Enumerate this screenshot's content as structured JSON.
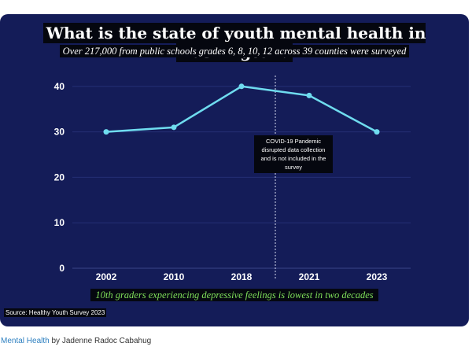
{
  "title": "What is the state of youth mental health in Washington?",
  "subtitle": "Over 217,000 from public schools grades 6, 8, 10, 12 across 39 counties were surveyed",
  "caption": "10th graders experiencing depressive feelings is lowest in two decades",
  "source": "Source: Healthy Youth Survey 2023",
  "byline": {
    "link_label": "Mental Health",
    "by_text": " by Jadenne Radoc Cabahug"
  },
  "colors": {
    "background": "#141c58",
    "line": "#6fdcef",
    "caption": "#7fe05a"
  },
  "chart_data": {
    "type": "line",
    "categories": [
      "2002",
      "2010",
      "2018",
      "2021",
      "2023"
    ],
    "values": [
      30,
      31,
      40,
      38,
      30
    ],
    "ylim": [
      0,
      45
    ],
    "yticks": [
      0,
      10,
      20,
      30,
      40
    ],
    "grid": true,
    "annotation": {
      "between": [
        "2018",
        "2021"
      ],
      "text": [
        "COVID-19 Pandemic",
        "disrupted data collection",
        "and is not included in the",
        "survey"
      ]
    }
  }
}
